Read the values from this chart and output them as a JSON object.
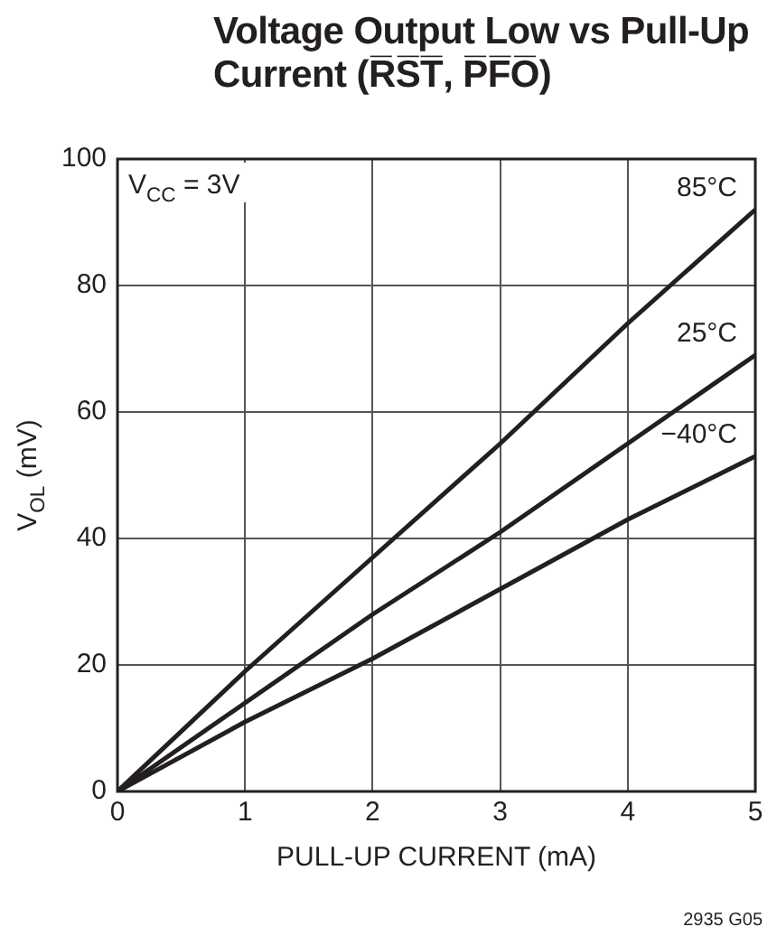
{
  "chart_data": {
    "type": "line",
    "title": "Voltage Output Low vs Pull-Up Current (R̅S̅T̅, P̅F̅O̅)",
    "xlabel": "PULL-UP CURRENT (mA)",
    "ylabel": "V$_{OL}$ (mV)",
    "x": [
      0,
      1,
      2,
      3,
      4,
      5
    ],
    "series": [
      {
        "name": "85°C",
        "color": "#231f20",
        "values": [
          0,
          19,
          37,
          55,
          74,
          92
        ]
      },
      {
        "name": "25°C",
        "color": "#231f20",
        "values": [
          0,
          14,
          28,
          41,
          55,
          69
        ]
      },
      {
        "name": "−40°C",
        "color": "#231f20",
        "values": [
          0,
          11,
          21,
          32,
          43,
          53
        ]
      }
    ],
    "xlim": [
      0,
      5
    ],
    "xticks": [
      0,
      1,
      2,
      3,
      4,
      5
    ],
    "ylim": [
      0,
      100
    ],
    "yticks": [
      0,
      20,
      40,
      60,
      80,
      100
    ],
    "grid": true,
    "legend": false,
    "marker": "none",
    "line_style": "solid",
    "annotations": [
      "V$_{CC}$ = 3V",
      "2935 G05"
    ]
  }
}
